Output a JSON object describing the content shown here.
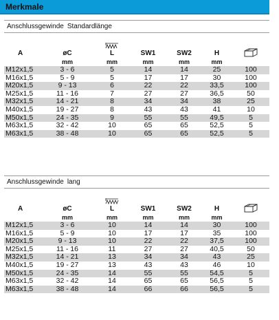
{
  "title": "Merkmale",
  "sections": [
    {
      "heading": [
        "Anschlussgewinde",
        "Standardlänge"
      ],
      "columns": [
        "A",
        "øC",
        "L",
        "SW1",
        "SW2",
        "H",
        ""
      ],
      "units": [
        "",
        "mm",
        "mm",
        "mm",
        "mm",
        "mm",
        ""
      ],
      "rows": [
        [
          "M12x1,5",
          "3 - 6",
          "5",
          "14",
          "14",
          "25",
          "100"
        ],
        [
          "M16x1,5",
          "5 - 9",
          "5",
          "17",
          "17",
          "30",
          "100"
        ],
        [
          "M20x1,5",
          "9 - 13",
          "6",
          "22",
          "22",
          "33,5",
          "100"
        ],
        [
          "M25x1,5",
          "11 - 16",
          "7",
          "27",
          "27",
          "36,5",
          "50"
        ],
        [
          "M32x1,5",
          "14 - 21",
          "8",
          "34",
          "34",
          "38",
          "25"
        ],
        [
          "M40x1,5",
          "19 - 27",
          "8",
          "43",
          "43",
          "41",
          "10"
        ],
        [
          "M50x1,5",
          "24 - 35",
          "9",
          "55",
          "55",
          "49,5",
          "5"
        ],
        [
          "M63x1,5",
          "32 - 42",
          "10",
          "65",
          "65",
          "52,5",
          "5"
        ],
        [
          "M63x1,5",
          "38 - 48",
          "10",
          "65",
          "65",
          "52,5",
          "5"
        ]
      ]
    },
    {
      "heading": [
        "Anschlussgewinde",
        "lang"
      ],
      "columns": [
        "A",
        "øC",
        "L",
        "SW1",
        "SW2",
        "H",
        ""
      ],
      "units": [
        "",
        "mm",
        "mm",
        "mm",
        "mm",
        "mm",
        ""
      ],
      "rows": [
        [
          "M12x1,5",
          "3 - 6",
          "10",
          "14",
          "14",
          "30",
          "100"
        ],
        [
          "M16x1,5",
          "5 - 9",
          "10",
          "17",
          "17",
          "35",
          "100"
        ],
        [
          "M20x1,5",
          "9 - 13",
          "10",
          "22",
          "22",
          "37,5",
          "100"
        ],
        [
          "M25x1,5",
          "11 - 16",
          "11",
          "27",
          "27",
          "40,5",
          "50"
        ],
        [
          "M32x1,5",
          "14 - 21",
          "13",
          "34",
          "34",
          "43",
          "25"
        ],
        [
          "M40x1,5",
          "19 - 27",
          "13",
          "43",
          "43",
          "46",
          "10"
        ],
        [
          "M50x1,5",
          "24 - 35",
          "14",
          "55",
          "55",
          "54,5",
          "5"
        ],
        [
          "M63x1,5",
          "32 - 42",
          "14",
          "65",
          "65",
          "56,5",
          "5"
        ],
        [
          "M63x1,5",
          "38 - 48",
          "14",
          "66",
          "66",
          "56,5",
          "5"
        ]
      ]
    }
  ],
  "colors": {
    "titlebar": "#0b9bd8",
    "row_shade": "#d6d6d6"
  },
  "icons": {
    "length": "thread-length-icon",
    "package": "package-box-icon"
  }
}
